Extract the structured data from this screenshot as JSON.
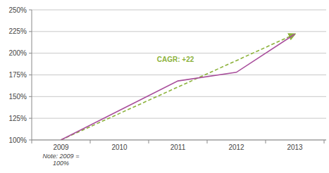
{
  "chart_data": {
    "type": "line",
    "categories": [
      "2009",
      "2010",
      "2011",
      "2012",
      "2013"
    ],
    "series": [
      {
        "color": "#a94f9c",
        "line_style": "solid",
        "values": [
          100,
          134,
          168,
          178,
          222
        ]
      },
      {
        "color": "#8cb23b",
        "line_style": "dashed",
        "marker": "arrow",
        "values": [
          100,
          130.5,
          161,
          191.5,
          222
        ]
      }
    ],
    "annotation": "CAGR: +22",
    "note": "Note: 2009 = 100%",
    "ylim": [
      100,
      250
    ],
    "yticks": [
      {
        "value": 100,
        "label": "100%"
      },
      {
        "value": 125,
        "label": "125%"
      },
      {
        "value": 150,
        "label": "150%"
      },
      {
        "value": 175,
        "label": "175%"
      },
      {
        "value": 200,
        "label": "200%"
      },
      {
        "value": 225,
        "label": "225%"
      },
      {
        "value": 250,
        "label": "250%"
      }
    ],
    "grid": true
  }
}
